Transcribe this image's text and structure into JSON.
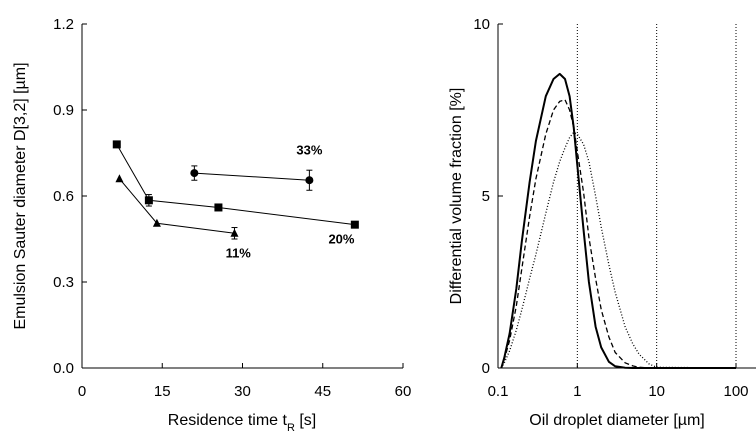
{
  "chart_data": [
    {
      "type": "scatter",
      "xlabel": "Residence time t",
      "xlabel_sub": "R",
      "xlabel_unit": " [s]",
      "ylabel": "Emulsion Sauter diameter D[3,2] [µm]",
      "xlim": [
        0,
        60
      ],
      "ylim": [
        0.0,
        1.2
      ],
      "x_ticks": [
        "0",
        "15",
        "30",
        "45",
        "60"
      ],
      "y_ticks": [
        "0.0",
        "0.3",
        "0.6",
        "0.9",
        "1.2"
      ],
      "grid": false,
      "series": [
        {
          "name": "33%",
          "marker": "circle",
          "x": [
            21,
            42.5
          ],
          "y": [
            0.68,
            0.655
          ],
          "error": [
            0.025,
            0.035
          ]
        },
        {
          "name": "20%",
          "marker": "square",
          "x": [
            6.5,
            12.5,
            25.5,
            51
          ],
          "y": [
            0.78,
            0.585,
            0.56,
            0.5
          ],
          "error": [
            0,
            0.02,
            0,
            0
          ]
        },
        {
          "name": "11%",
          "marker": "triangle",
          "x": [
            7,
            14,
            28.5
          ],
          "y": [
            0.66,
            0.505,
            0.47
          ],
          "error": [
            0,
            0,
            0.02
          ]
        }
      ]
    },
    {
      "type": "line",
      "xlabel": "Oil droplet diameter [µm]",
      "ylabel": "Differential volume fraction [%]",
      "x_scale": "log",
      "xlim": [
        0.1,
        100
      ],
      "ylim": [
        0,
        10
      ],
      "x_ticks": [
        "0.1",
        "1",
        "10",
        "100"
      ],
      "y_ticks": [
        "0",
        "5",
        "10"
      ],
      "vertical_dotted_gridlines_at": [
        1,
        10,
        100
      ],
      "series": [
        {
          "style": "solid",
          "x": [
            0.11,
            0.12,
            0.14,
            0.17,
            0.2,
            0.25,
            0.3,
            0.4,
            0.5,
            0.6,
            0.7,
            0.8,
            0.9,
            1.0,
            1.2,
            1.4,
            1.7,
            2.0,
            2.5,
            3.0,
            4.0,
            5.0,
            6.0,
            8.0,
            10,
            100
          ],
          "y": [
            0,
            0.3,
            1.0,
            2.3,
            3.7,
            5.4,
            6.6,
            7.9,
            8.4,
            8.55,
            8.4,
            7.9,
            7.0,
            5.9,
            4.0,
            2.5,
            1.2,
            0.6,
            0.18,
            0.05,
            0.01,
            0,
            0,
            0,
            0,
            0
          ]
        },
        {
          "style": "dashed",
          "x": [
            0.11,
            0.12,
            0.14,
            0.17,
            0.2,
            0.25,
            0.3,
            0.4,
            0.5,
            0.6,
            0.7,
            0.8,
            0.9,
            1.0,
            1.2,
            1.4,
            1.7,
            2.0,
            2.5,
            3.0,
            4.0,
            5.0,
            6.0,
            8.0,
            10,
            100
          ],
          "y": [
            0,
            0.25,
            0.8,
            1.8,
            2.9,
            4.4,
            5.5,
            6.8,
            7.5,
            7.75,
            7.8,
            7.5,
            7.0,
            6.3,
            5.1,
            3.8,
            2.6,
            1.7,
            0.9,
            0.45,
            0.15,
            0.06,
            0.02,
            0,
            0,
            0
          ]
        },
        {
          "style": "dotted",
          "x": [
            0.11,
            0.12,
            0.14,
            0.17,
            0.2,
            0.25,
            0.3,
            0.4,
            0.5,
            0.6,
            0.7,
            0.8,
            0.9,
            1.0,
            1.2,
            1.4,
            1.7,
            2.0,
            2.5,
            3.0,
            4.0,
            5.0,
            6.0,
            8.0,
            10,
            100
          ],
          "y": [
            0,
            0.15,
            0.5,
            1.1,
            1.7,
            2.6,
            3.3,
            4.5,
            5.4,
            6.0,
            6.4,
            6.7,
            6.85,
            6.8,
            6.5,
            6.0,
            5.0,
            4.1,
            3.0,
            2.2,
            1.2,
            0.7,
            0.4,
            0.12,
            0.02,
            0
          ]
        }
      ]
    }
  ]
}
